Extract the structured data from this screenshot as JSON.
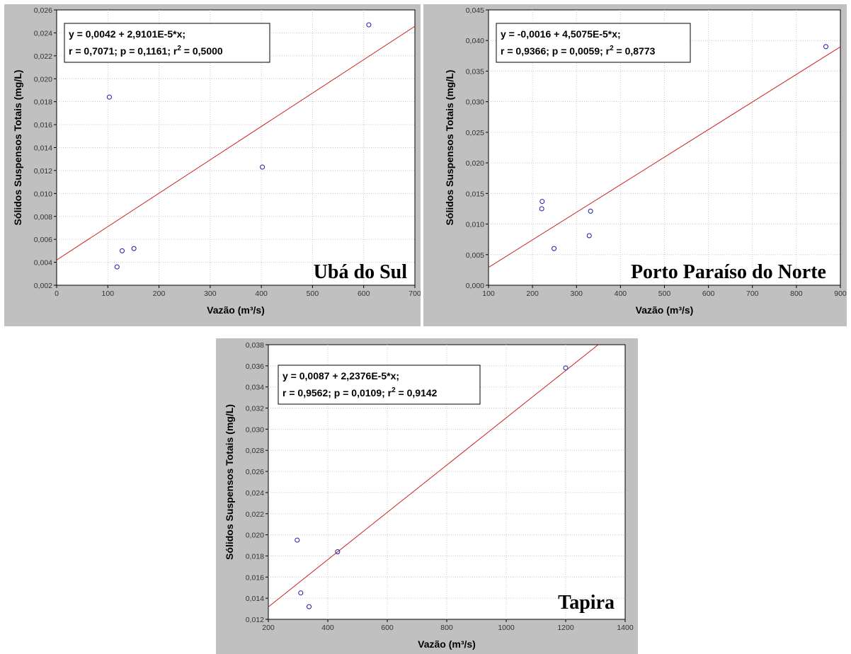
{
  "chart_data": [
    {
      "type": "scatter",
      "station": "Ubá do Sul",
      "xlabel": "Vazão (m³/s)",
      "ylabel": "Sólidos Suspensos Totais (mg/L)",
      "xlim": [
        0,
        700
      ],
      "ylim": [
        0.002,
        0.026
      ],
      "xticks": [
        0,
        100,
        200,
        300,
        400,
        500,
        600,
        700
      ],
      "xtick_labels": [
        "0",
        "100",
        "200",
        "300",
        "400",
        "500",
        "600",
        "700"
      ],
      "yticks": [
        0.002,
        0.004,
        0.006,
        0.008,
        0.01,
        0.012,
        0.014,
        0.016,
        0.018,
        0.02,
        0.022,
        0.024,
        0.026
      ],
      "ytick_labels": [
        "0,002",
        "0,004",
        "0,006",
        "0,008",
        "0,010",
        "0,012",
        "0,014",
        "0,016",
        "0,018",
        "0,020",
        "0,022",
        "0,024",
        "0,026"
      ],
      "grid": true,
      "points": [
        {
          "x": 103,
          "y": 0.0184
        },
        {
          "x": 118,
          "y": 0.0036
        },
        {
          "x": 128,
          "y": 0.005
        },
        {
          "x": 151,
          "y": 0.0052
        },
        {
          "x": 402,
          "y": 0.0123
        },
        {
          "x": 610,
          "y": 0.0247
        }
      ],
      "regression": {
        "intercept": 0.0042,
        "slope": 2.9101e-05
      },
      "equation_line1": "y = 0,0042 + 2,9101E-5*x;",
      "equation_line2": "r = 0,7071; p = 0,1161; r",
      "r2_sup": "2",
      "r2_value": " = 0,5000",
      "colors": {
        "point": "#1a1aa8",
        "line": "#cc2020",
        "frame": "#c0c0c0"
      }
    },
    {
      "type": "scatter",
      "station": "Porto Paraíso do Norte",
      "xlabel": "Vazão (m³/s)",
      "ylabel": "Sólidos Suspensos Totais (mg/L)",
      "xlim": [
        100,
        900
      ],
      "ylim": [
        0.0,
        0.045
      ],
      "xticks": [
        100,
        200,
        300,
        400,
        500,
        600,
        700,
        800,
        900
      ],
      "xtick_labels": [
        "100",
        "200",
        "300",
        "400",
        "500",
        "600",
        "700",
        "800",
        "900"
      ],
      "yticks": [
        0.0,
        0.005,
        0.01,
        0.015,
        0.02,
        0.025,
        0.03,
        0.035,
        0.04,
        0.045
      ],
      "ytick_labels": [
        "0,000",
        "0,005",
        "0,010",
        "0,015",
        "0,020",
        "0,025",
        "0,030",
        "0,035",
        "0,040",
        "0,045"
      ],
      "grid": true,
      "points": [
        {
          "x": 222,
          "y": 0.0137
        },
        {
          "x": 221,
          "y": 0.0125
        },
        {
          "x": 249,
          "y": 0.006
        },
        {
          "x": 329,
          "y": 0.0081
        },
        {
          "x": 332,
          "y": 0.0121
        },
        {
          "x": 867,
          "y": 0.039
        }
      ],
      "regression": {
        "intercept": -0.0016,
        "slope": 4.5075e-05
      },
      "equation_line1": "y = -0,0016 + 4,5075E-5*x;",
      "equation_line2": "r = 0,9366; p = 0,0059; r",
      "r2_sup": "2",
      "r2_value": " = 0,8773",
      "colors": {
        "point": "#1a1aa8",
        "line": "#cc2020",
        "frame": "#c0c0c0"
      }
    },
    {
      "type": "scatter",
      "station": "Tapira",
      "xlabel": "Vazão (m³/s)",
      "ylabel": "Sólidos Suspensos Totais (mg/L)",
      "xlim": [
        200,
        1400
      ],
      "ylim": [
        0.012,
        0.038
      ],
      "xticks": [
        200,
        400,
        600,
        800,
        1000,
        1200,
        1400
      ],
      "xtick_labels": [
        "200",
        "400",
        "600",
        "800",
        "1000",
        "1200",
        "1400"
      ],
      "yticks": [
        0.012,
        0.014,
        0.016,
        0.018,
        0.02,
        0.022,
        0.024,
        0.026,
        0.028,
        0.03,
        0.032,
        0.034,
        0.036,
        0.038
      ],
      "ytick_labels": [
        "0,012",
        "0,014",
        "0,016",
        "0,018",
        "0,020",
        "0,022",
        "0,024",
        "0,026",
        "0,028",
        "0,030",
        "0,032",
        "0,034",
        "0,036",
        "0,038"
      ],
      "grid": true,
      "points": [
        {
          "x": 297,
          "y": 0.0195
        },
        {
          "x": 309,
          "y": 0.0145
        },
        {
          "x": 337,
          "y": 0.0132
        },
        {
          "x": 433,
          "y": 0.0184
        },
        {
          "x": 1200,
          "y": 0.0358
        }
      ],
      "regression": {
        "intercept": 0.0087,
        "slope": 2.2376e-05
      },
      "equation_line1": "y = 0,0087 + 2,2376E-5*x;",
      "equation_line2": "r = 0,9562; p = 0,0109; r",
      "r2_sup": "2",
      "r2_value": " = 0,9142",
      "colors": {
        "point": "#1a1aa8",
        "line": "#cc2020",
        "frame": "#c0c0c0"
      }
    }
  ]
}
